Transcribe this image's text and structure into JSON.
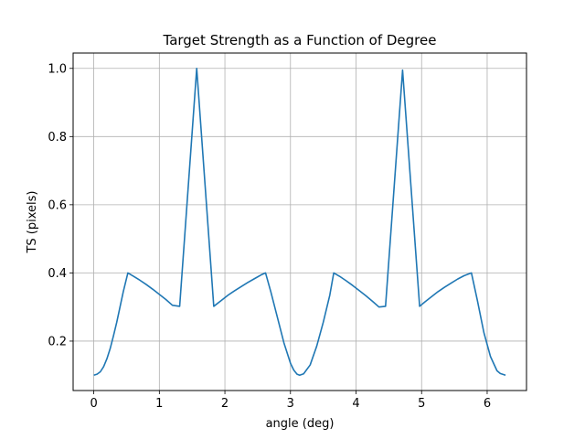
{
  "chart_data": {
    "type": "line",
    "title": "Target Strength as a Function of Degree",
    "xlabel": "angle (deg)",
    "ylabel": "TS (pixels)",
    "xlim": [
      -0.315,
      6.6
    ],
    "ylim": [
      0.055,
      1.045
    ],
    "xticks": [
      0,
      1,
      2,
      3,
      4,
      5,
      6
    ],
    "yticks": [
      0.2,
      0.4,
      0.6,
      0.8,
      1.0
    ],
    "xtick_labels": [
      "0",
      "1",
      "2",
      "3",
      "4",
      "5",
      "6"
    ],
    "ytick_labels": [
      "0.2",
      "0.4",
      "0.6",
      "0.8",
      "1.0"
    ],
    "grid": true,
    "legend": false,
    "series": [
      {
        "color": "#1f77b4",
        "x": [
          0,
          0.05,
          0.1,
          0.15,
          0.2,
          0.25,
          0.3,
          0.35,
          0.4,
          0.45,
          0.52,
          0.6,
          0.7,
          0.8,
          0.9,
          1.0,
          1.1,
          1.2,
          1.31,
          1.57,
          1.83,
          1.95,
          2.05,
          2.15,
          2.25,
          2.35,
          2.45,
          2.55,
          2.62,
          2.7,
          2.8,
          2.9,
          3.0,
          3.05,
          3.1,
          3.14,
          3.2,
          3.3,
          3.4,
          3.5,
          3.6,
          3.66,
          3.75,
          3.85,
          3.95,
          4.05,
          4.15,
          4.25,
          4.35,
          4.45,
          4.71,
          4.97,
          5.05,
          5.15,
          5.25,
          5.35,
          5.45,
          5.55,
          5.65,
          5.76,
          5.85,
          5.95,
          6.05,
          6.15,
          6.2,
          6.28
        ],
        "y": [
          0.1,
          0.103,
          0.11,
          0.125,
          0.148,
          0.178,
          0.215,
          0.255,
          0.3,
          0.345,
          0.4,
          0.391,
          0.379,
          0.366,
          0.352,
          0.337,
          0.322,
          0.305,
          0.302,
          1.0,
          0.302,
          0.32,
          0.335,
          0.348,
          0.36,
          0.372,
          0.383,
          0.394,
          0.4,
          0.345,
          0.27,
          0.195,
          0.135,
          0.115,
          0.103,
          0.1,
          0.104,
          0.13,
          0.185,
          0.255,
          0.335,
          0.4,
          0.39,
          0.377,
          0.363,
          0.348,
          0.333,
          0.317,
          0.3,
          0.302,
          0.995,
          0.302,
          0.315,
          0.33,
          0.345,
          0.358,
          0.37,
          0.382,
          0.392,
          0.4,
          0.32,
          0.225,
          0.155,
          0.113,
          0.105,
          0.1
        ]
      }
    ]
  }
}
